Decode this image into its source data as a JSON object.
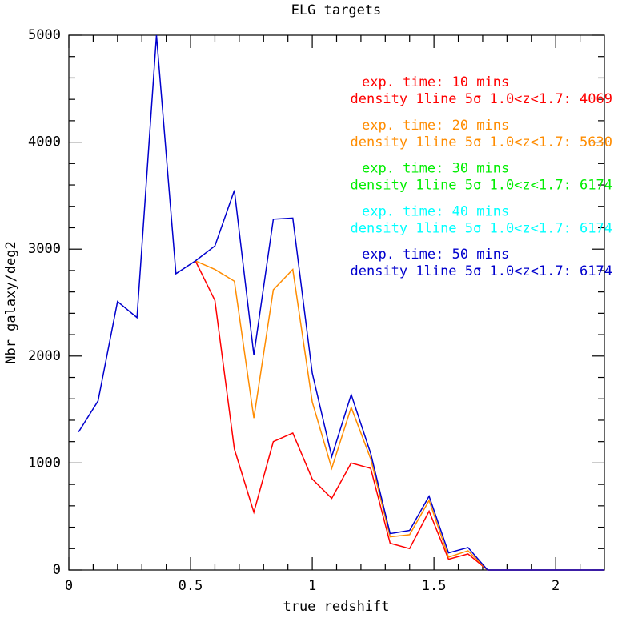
{
  "chart_data": {
    "type": "line",
    "title": "ELG targets",
    "xlabel": "true redshift",
    "ylabel": "Nbr galaxy/deg2",
    "x": [
      0.04,
      0.12,
      0.2,
      0.28,
      0.36,
      0.44,
      0.52,
      0.6,
      0.68,
      0.76,
      0.84,
      0.92,
      1.0,
      1.08,
      1.16,
      1.24,
      1.32,
      1.4,
      1.48,
      1.56,
      1.64,
      1.72,
      1.8,
      1.88,
      1.96,
      2.04,
      2.12,
      2.2
    ],
    "series": [
      {
        "name": "exp. time: 10 mins",
        "color": "#ff0000",
        "values": [
          null,
          null,
          null,
          null,
          null,
          null,
          2890,
          2520,
          1130,
          540,
          1200,
          1280,
          850,
          670,
          1000,
          950,
          250,
          200,
          550,
          100,
          150,
          0,
          0,
          0,
          0,
          0,
          0,
          0
        ]
      },
      {
        "name": "exp. time: 20 mins",
        "color": "#ff8c00",
        "values": [
          null,
          null,
          null,
          null,
          null,
          null,
          2890,
          2810,
          2700,
          1420,
          2620,
          2810,
          1570,
          950,
          1520,
          1040,
          310,
          330,
          650,
          120,
          180,
          0,
          0,
          0,
          0,
          0,
          0,
          0
        ]
      },
      {
        "name": "exp. time: 50 mins",
        "color": "#0000cd",
        "values": [
          1290,
          1580,
          2510,
          2360,
          5000,
          2770,
          2890,
          3030,
          3550,
          2010,
          3280,
          3290,
          1840,
          1060,
          1640,
          1090,
          340,
          370,
          690,
          160,
          210,
          0,
          0,
          0,
          0,
          0,
          0,
          0
        ]
      }
    ],
    "annotations": [
      {
        "lines": [
          "exp. time: 10 mins",
          "density 1line 5σ 1.0<z<1.7:  4069"
        ],
        "color": "#ff0000"
      },
      {
        "lines": [
          "exp. time: 20 mins",
          "density 1line 5σ 1.0<z<1.7:  5630"
        ],
        "color": "#ff8c00"
      },
      {
        "lines": [
          "exp. time: 30 mins",
          "density 1line 5σ 1.0<z<1.7:  6174"
        ],
        "color": "#00ee00"
      },
      {
        "lines": [
          "exp. time: 40 mins",
          "density 1line 5σ 1.0<z<1.7:  6174"
        ],
        "color": "#00ffff"
      },
      {
        "lines": [
          "exp. time: 50 mins",
          "density 1line 5σ 1.0<z<1.7:  6174"
        ],
        "color": "#0000cd"
      }
    ],
    "xlim": [
      0,
      2.2
    ],
    "ylim": [
      0,
      5000
    ],
    "xticks": [
      0,
      0.5,
      1,
      1.5,
      2
    ],
    "yticks": [
      0,
      1000,
      2000,
      3000,
      4000,
      5000
    ],
    "xminorticks": [
      0.1,
      0.2,
      0.3,
      0.4,
      0.6,
      0.7,
      0.8,
      0.9,
      1.1,
      1.2,
      1.3,
      1.4,
      1.6,
      1.7,
      1.8,
      1.9,
      2.1
    ],
    "yminorticks": [
      200,
      400,
      600,
      800,
      1200,
      1400,
      1600,
      1800,
      2200,
      2400,
      2600,
      2800,
      3200,
      3400,
      3600,
      3800,
      4200,
      4400,
      4600,
      4800
    ]
  }
}
